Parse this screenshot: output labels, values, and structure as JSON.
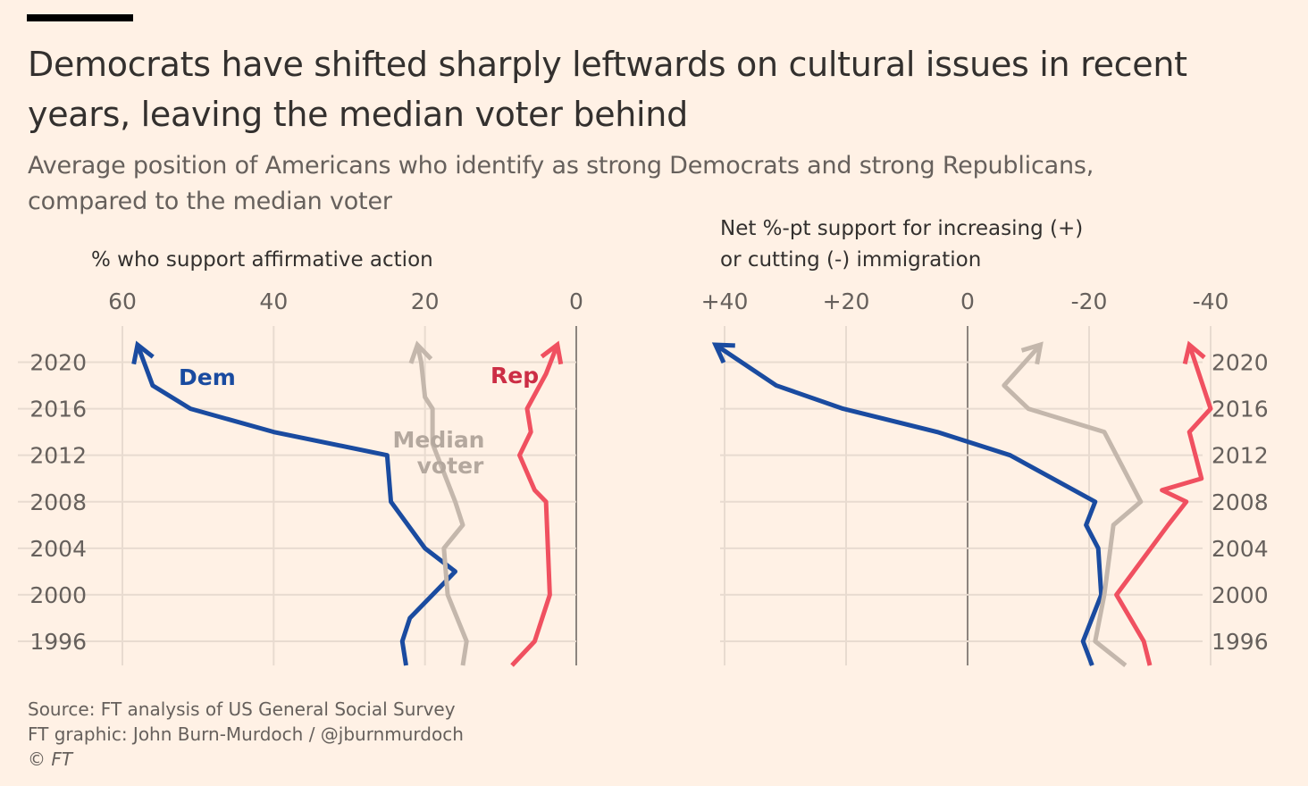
{
  "header": {
    "title": "Democrats have shifted sharply leftwards on cultural issues in recent years, leaving the median voter behind",
    "subtitle": "Average position of Americans who identify as strong Democrats and strong Republicans, compared to the median voter"
  },
  "footer": {
    "source": "Source: FT analysis of US General Social Survey",
    "credit": "FT graphic: John Burn-Murdoch / @jburnmurdoch",
    "copyright": "© FT"
  },
  "colors": {
    "dem": "#1a4ba0",
    "rep": "#f05060",
    "median": "#c4b7ac",
    "grid": "#e8dbd0",
    "zero": "#66605c",
    "axis_text": "#66605c",
    "dem_label": "#1a4ba0",
    "rep_label": "#cc2e45",
    "median_label": "#b4a89e"
  },
  "chart_data": [
    {
      "type": "line",
      "orientation": "vertical-time",
      "title": "",
      "xlabel": "% who support affirmative action",
      "xlim": [
        60,
        0
      ],
      "x_ticks": [
        "60",
        "40",
        "20",
        "0"
      ],
      "x_tick_values": [
        60,
        40,
        20,
        0
      ],
      "ylim": [
        1994,
        2022
      ],
      "y_ticks": [
        "2020",
        "2016",
        "2012",
        "2008",
        "2004",
        "2000",
        "1996"
      ],
      "y_tick_values": [
        2020,
        2016,
        2012,
        2008,
        2004,
        2000,
        1996
      ],
      "grid": true,
      "series": [
        {
          "name": "Dem",
          "key": "dem",
          "points": [
            [
              22.5,
              1994.0
            ],
            [
              23,
              1996
            ],
            [
              22,
              1998
            ],
            [
              16,
              2002
            ],
            [
              20,
              2004
            ],
            [
              24.5,
              2008
            ],
            [
              25,
              2012
            ],
            [
              40,
              2014
            ],
            [
              51,
              2016
            ],
            [
              56,
              2018
            ],
            [
              58,
              2021.5
            ]
          ]
        },
        {
          "name": "Median voter",
          "key": "median",
          "points": [
            [
              15,
              1994.0
            ],
            [
              14.5,
              1996
            ],
            [
              17,
              2000
            ],
            [
              17.5,
              2004
            ],
            [
              15,
              2006
            ],
            [
              16,
              2008
            ],
            [
              19,
              2013
            ],
            [
              19,
              2016
            ],
            [
              20,
              2017
            ],
            [
              20.5,
              2020
            ],
            [
              21,
              2021.5
            ]
          ]
        },
        {
          "name": "Rep",
          "key": "rep",
          "points": [
            [
              8.5,
              1994.0
            ],
            [
              5.5,
              1996
            ],
            [
              3.5,
              2000
            ],
            [
              4,
              2008
            ],
            [
              5.5,
              2009
            ],
            [
              7.5,
              2012
            ],
            [
              6,
              2014
            ],
            [
              6.5,
              2016
            ],
            [
              4,
              2019
            ],
            [
              2.5,
              2021.5
            ]
          ]
        }
      ],
      "labels": {
        "dem": "Dem",
        "rep": "Rep",
        "median_line1": "Median",
        "median_line2": "voter"
      }
    },
    {
      "type": "line",
      "orientation": "vertical-time",
      "title": "",
      "xlabel_line1": "Net %-pt support for increasing (+)",
      "xlabel_line2": "or cutting (-) immigration",
      "xlim": [
        45,
        -45
      ],
      "x_ticks": [
        "+40",
        "+20",
        "0",
        "-20",
        "-40"
      ],
      "x_tick_values": [
        40,
        20,
        0,
        -20,
        -40
      ],
      "ylim": [
        1994,
        2022
      ],
      "y_ticks": [
        "2020",
        "2016",
        "2012",
        "2008",
        "2004",
        "2000",
        "1996"
      ],
      "y_tick_values": [
        2020,
        2016,
        2012,
        2008,
        2004,
        2000,
        1996
      ],
      "grid": true,
      "series": [
        {
          "name": "Dem",
          "key": "dem",
          "points": [
            [
              -20.5,
              1994.0
            ],
            [
              -19,
              1996
            ],
            [
              -22,
              2000
            ],
            [
              -21.5,
              2004
            ],
            [
              -19.5,
              2006
            ],
            [
              -21,
              2008
            ],
            [
              -7,
              2012
            ],
            [
              5,
              2014
            ],
            [
              20.5,
              2016
            ],
            [
              31.5,
              2018
            ],
            [
              41.5,
              2021.5
            ]
          ]
        },
        {
          "name": "Median voter",
          "key": "median",
          "points": [
            [
              -26,
              1994.0
            ],
            [
              -21,
              1996
            ],
            [
              -22.5,
              2000
            ],
            [
              -24,
              2006
            ],
            [
              -28.5,
              2008
            ],
            [
              -22.5,
              2014
            ],
            [
              -10,
              2016
            ],
            [
              -6,
              2018
            ],
            [
              -12,
              2021.5
            ]
          ]
        },
        {
          "name": "Rep",
          "key": "rep",
          "points": [
            [
              -30,
              1994.0
            ],
            [
              -29,
              1996
            ],
            [
              -24.5,
              2000
            ],
            [
              -33,
              2006
            ],
            [
              -36,
              2008
            ],
            [
              -32,
              2009
            ],
            [
              -38.5,
              2010
            ],
            [
              -36.5,
              2014
            ],
            [
              -40,
              2016
            ],
            [
              -36.5,
              2021.5
            ]
          ]
        }
      ]
    }
  ]
}
